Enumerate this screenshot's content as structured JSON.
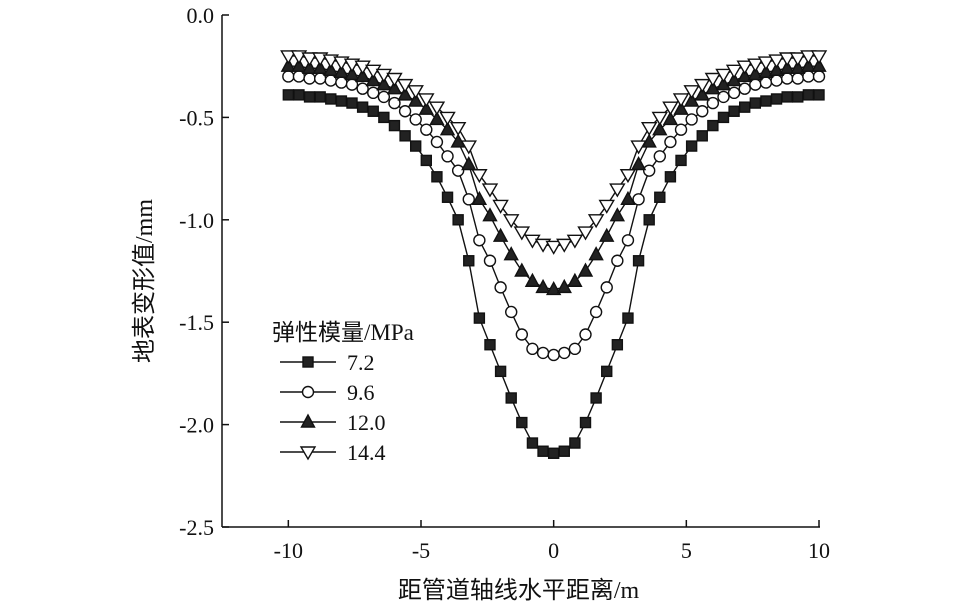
{
  "chart_data": {
    "type": "line",
    "xlabel": "距管道轴线水平距离/m",
    "ylabel": "地表变形值/mm",
    "xlim": [
      -12.5,
      10
    ],
    "ylim": [
      -2.5,
      0
    ],
    "x_ticks": [
      -10,
      -5,
      0,
      5,
      10
    ],
    "x_tick_labels": [
      "-10",
      "-5",
      "0",
      "5",
      "10"
    ],
    "y_ticks": [
      0,
      -0.5,
      -1.0,
      -1.5,
      -2.0,
      -2.5
    ],
    "y_tick_labels": [
      "0.0",
      "-0.5",
      "-1.0",
      "-1.5",
      "-2.0",
      "-2.5"
    ],
    "legend_title": "弹性模量/MPa",
    "legend_position": "center-left",
    "grid": false,
    "x": [
      -10,
      -9.6,
      -9.2,
      -8.8,
      -8.4,
      -8.0,
      -7.6,
      -7.2,
      -6.8,
      -6.4,
      -6.0,
      -5.6,
      -5.2,
      -4.8,
      -4.4,
      -4.0,
      -3.6,
      -3.2,
      -2.8,
      -2.4,
      -2.0,
      -1.6,
      -1.2,
      -0.8,
      -0.4,
      0.0,
      0.4,
      0.8,
      1.2,
      1.6,
      2.0,
      2.4,
      2.8,
      3.2,
      3.6,
      4.0,
      4.4,
      4.8,
      5.2,
      5.6,
      6.0,
      6.4,
      6.8,
      7.2,
      7.6,
      8.0,
      8.4,
      8.8,
      9.2,
      9.6,
      10
    ],
    "series": [
      {
        "name": "7.2",
        "marker": "square-filled",
        "values": [
          -0.39,
          -0.39,
          -0.4,
          -0.4,
          -0.41,
          -0.42,
          -0.43,
          -0.45,
          -0.47,
          -0.5,
          -0.54,
          -0.59,
          -0.64,
          -0.71,
          -0.79,
          -0.89,
          -1.0,
          -1.2,
          -1.48,
          -1.61,
          -1.74,
          -1.87,
          -1.99,
          -2.09,
          -2.13,
          -2.14,
          -2.13,
          -2.09,
          -1.99,
          -1.87,
          -1.74,
          -1.61,
          -1.48,
          -1.2,
          -1.0,
          -0.89,
          -0.79,
          -0.71,
          -0.64,
          -0.59,
          -0.54,
          -0.5,
          -0.47,
          -0.45,
          -0.43,
          -0.42,
          -0.41,
          -0.4,
          -0.4,
          -0.39,
          -0.39
        ]
      },
      {
        "name": "9.6",
        "marker": "circle-open",
        "values": [
          -0.3,
          -0.3,
          -0.31,
          -0.31,
          -0.32,
          -0.33,
          -0.34,
          -0.36,
          -0.38,
          -0.4,
          -0.43,
          -0.47,
          -0.51,
          -0.56,
          -0.62,
          -0.69,
          -0.76,
          -0.9,
          -1.1,
          -1.2,
          -1.33,
          -1.45,
          -1.56,
          -1.63,
          -1.65,
          -1.66,
          -1.65,
          -1.63,
          -1.56,
          -1.45,
          -1.33,
          -1.2,
          -1.1,
          -0.9,
          -0.76,
          -0.69,
          -0.62,
          -0.56,
          -0.51,
          -0.47,
          -0.43,
          -0.4,
          -0.38,
          -0.36,
          -0.34,
          -0.33,
          -0.32,
          -0.31,
          -0.31,
          -0.3,
          -0.3
        ]
      },
      {
        "name": "12.0",
        "marker": "triangle-up-filled",
        "values": [
          -0.25,
          -0.25,
          -0.26,
          -0.26,
          -0.27,
          -0.28,
          -0.29,
          -0.3,
          -0.32,
          -0.34,
          -0.36,
          -0.39,
          -0.42,
          -0.46,
          -0.51,
          -0.56,
          -0.62,
          -0.73,
          -0.9,
          -0.98,
          -1.08,
          -1.17,
          -1.25,
          -1.3,
          -1.33,
          -1.34,
          -1.33,
          -1.3,
          -1.25,
          -1.17,
          -1.08,
          -0.98,
          -0.9,
          -0.73,
          -0.62,
          -0.56,
          -0.51,
          -0.46,
          -0.42,
          -0.39,
          -0.36,
          -0.34,
          -0.32,
          -0.3,
          -0.29,
          -0.28,
          -0.27,
          -0.26,
          -0.26,
          -0.25,
          -0.25
        ]
      },
      {
        "name": "14.4",
        "marker": "triangle-down-open",
        "values": [
          -0.2,
          -0.2,
          -0.21,
          -0.21,
          -0.22,
          -0.23,
          -0.24,
          -0.25,
          -0.27,
          -0.29,
          -0.31,
          -0.34,
          -0.37,
          -0.41,
          -0.45,
          -0.5,
          -0.55,
          -0.64,
          -0.78,
          -0.85,
          -0.93,
          -1.0,
          -1.06,
          -1.1,
          -1.12,
          -1.13,
          -1.12,
          -1.1,
          -1.06,
          -1.0,
          -0.93,
          -0.85,
          -0.78,
          -0.64,
          -0.55,
          -0.5,
          -0.45,
          -0.41,
          -0.37,
          -0.34,
          -0.31,
          -0.29,
          -0.27,
          -0.25,
          -0.24,
          -0.23,
          -0.22,
          -0.21,
          -0.21,
          -0.2,
          -0.2
        ]
      }
    ]
  }
}
